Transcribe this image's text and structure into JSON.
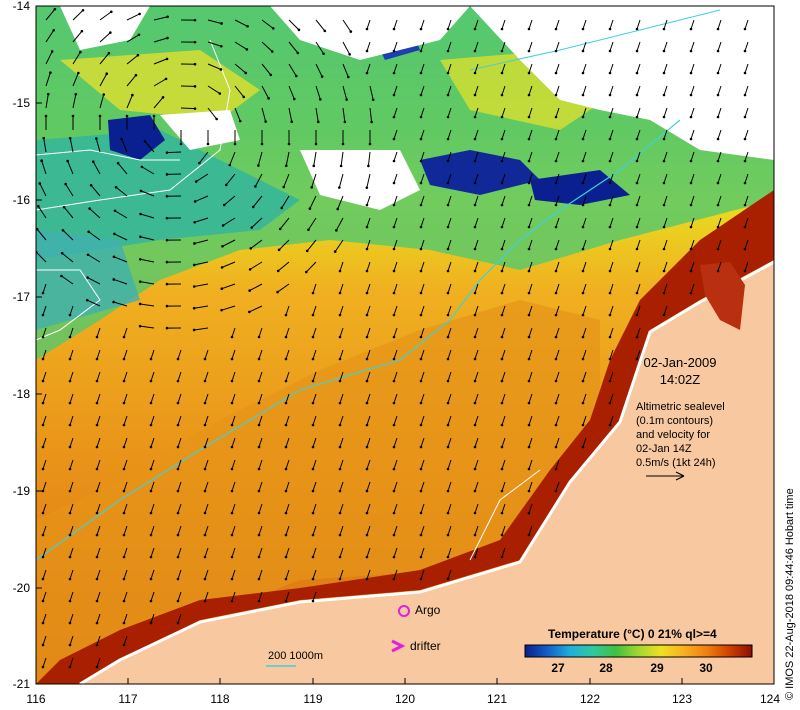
{
  "axes": {
    "y_ticks": [
      "-14",
      "-15",
      "-16",
      "-17",
      "-18",
      "-19",
      "-20",
      "-21"
    ],
    "x_ticks": [
      "116",
      "117",
      "118",
      "119",
      "120",
      "121",
      "122",
      "123",
      "124"
    ]
  },
  "date": "02-Jan-2009",
  "time": "14:02Z",
  "info_lines": [
    "Altimetric sealevel",
    "(0.1m contours)",
    "and velocity for",
    "02-Jan 14Z",
    "0.5m/s (1kt 24h)"
  ],
  "legend": {
    "argo_label": "Argo",
    "drifter_label": "drifter",
    "depth_label": "200  1000m"
  },
  "colorbar": {
    "title": "Temperature (°C) 0 21% ql>=4",
    "ticks": [
      "27",
      "28",
      "29",
      "30"
    ],
    "colors": [
      "#0a1e8c",
      "#1060c8",
      "#20b0d8",
      "#30c8a0",
      "#40c040",
      "#a0d830",
      "#f0e020",
      "#f8b020",
      "#f08010",
      "#d04000",
      "#8c1000"
    ]
  },
  "credit": "© IMOS 22-Aug-2018 09:44:46 Hobart time",
  "colors": {
    "land": "#f8c8a0",
    "cloud": "#ffffff",
    "warm": "#e88810",
    "coast_hot": "#9c1a00",
    "argo": "#e020e0",
    "contour": "#40d0d8"
  }
}
